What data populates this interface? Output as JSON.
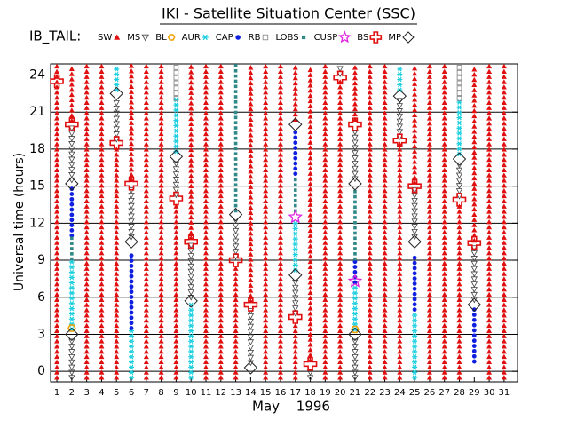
{
  "chart_data": {
    "type": "orbit-regions",
    "title": "IKI - Satellite Situation Center (SSC)",
    "legend_title": "IB_TAIL:",
    "y_label": "Universal time (hours)",
    "x_label": "May 1996",
    "xlim": [
      0.58,
      31.9
    ],
    "ylim": [
      -0.85,
      24.9
    ],
    "xticks": [
      1,
      2,
      3,
      4,
      5,
      6,
      7,
      8,
      9,
      10,
      11,
      12,
      13,
      14,
      15,
      16,
      17,
      18,
      19,
      20,
      21,
      22,
      23,
      24,
      25,
      26,
      27,
      28,
      29,
      30,
      31
    ],
    "yticks": [
      0,
      3,
      6,
      9,
      12,
      15,
      18,
      21,
      24
    ],
    "grid": true,
    "series": [
      {
        "name": "SW",
        "color": "#e01010",
        "marker": "triangle",
        "segments": [
          [
            1,
            -0.5,
            24.8
          ],
          [
            2,
            20.3,
            24.8
          ],
          [
            3,
            -0.5,
            24.8
          ],
          [
            4,
            -0.5,
            24.8
          ],
          [
            5,
            -0.5,
            18.2
          ],
          [
            6,
            15.5,
            24.8
          ],
          [
            7,
            -0.5,
            24.8
          ],
          [
            8,
            -0.5,
            24.8
          ],
          [
            9,
            -0.5,
            13.7
          ],
          [
            10,
            10.8,
            24.8
          ],
          [
            11,
            -0.5,
            24.8
          ],
          [
            12,
            -0.5,
            24.8
          ],
          [
            13,
            -0.5,
            8.6
          ],
          [
            14,
            5.7,
            24.8
          ],
          [
            15,
            -0.5,
            24.8
          ],
          [
            16,
            -0.5,
            24.8
          ],
          [
            17,
            20.4,
            24.8
          ],
          [
            17,
            -0.5,
            4.1
          ],
          [
            18,
            0.9,
            24.8
          ],
          [
            19,
            -0.5,
            24.8
          ],
          [
            20,
            -0.5,
            23.5
          ],
          [
            21,
            20.4,
            24.8
          ],
          [
            22,
            -0.5,
            24.8
          ],
          [
            23,
            -0.5,
            24.8
          ],
          [
            24,
            -0.5,
            18.4
          ],
          [
            25,
            15.3,
            24.8
          ],
          [
            26,
            -0.5,
            24.8
          ],
          [
            27,
            -0.5,
            24.8
          ],
          [
            28,
            -0.5,
            13.6
          ],
          [
            29,
            10.6,
            24.8
          ],
          [
            30,
            -0.5,
            24.8
          ],
          [
            31,
            -0.5,
            24.8
          ]
        ],
        "events": []
      },
      {
        "name": "MS",
        "color": "#404040",
        "marker": "down-triangle",
        "segments": [
          [
            2,
            15.5,
            19.7
          ],
          [
            2,
            -0.5,
            2.7
          ],
          [
            5,
            18.8,
            22.1
          ],
          [
            6,
            10.9,
            14.9
          ],
          [
            9,
            14.3,
            17.0
          ],
          [
            10,
            6.0,
            10.2
          ],
          [
            13,
            9.3,
            12.3
          ],
          [
            14,
            0.7,
            5.1
          ],
          [
            17,
            4.7,
            7.4
          ],
          [
            18,
            -0.5,
            0.3
          ],
          [
            20,
            24.1,
            24.8
          ],
          [
            21,
            15.6,
            19.7
          ],
          [
            21,
            -0.5,
            2.7
          ],
          [
            24,
            19.0,
            22.0
          ],
          [
            25,
            10.9,
            14.7
          ],
          [
            28,
            14.2,
            16.9
          ],
          [
            29,
            5.8,
            10.1
          ]
        ],
        "events": []
      },
      {
        "name": "BL",
        "color": "#f0a000",
        "marker": "hexagon",
        "segments": [],
        "events": [
          [
            2,
            3.5
          ],
          [
            21,
            3.4
          ]
        ]
      },
      {
        "name": "AUR",
        "color": "#20d0e0",
        "marker": "asterisk",
        "segments": [
          [
            2,
            3.4,
            9.0
          ],
          [
            5,
            22.8,
            24.8
          ],
          [
            6,
            -0.5,
            3.3
          ],
          [
            9,
            17.8,
            22.0
          ],
          [
            10,
            -0.5,
            5.4
          ],
          [
            17,
            8.2,
            12.2
          ],
          [
            21,
            3.4,
            7.0
          ],
          [
            24,
            22.8,
            24.8
          ],
          [
            25,
            -0.5,
            4.8
          ],
          [
            28,
            17.6,
            21.9
          ]
        ],
        "events": []
      },
      {
        "name": "CAP",
        "color": "#1020e0",
        "marker": "dot",
        "segments": [
          [
            2,
            11.0,
            15.0
          ],
          [
            6,
            3.5,
            9.5
          ],
          [
            17,
            16.0,
            19.7
          ],
          [
            21,
            7.2,
            9.0
          ],
          [
            25,
            5.0,
            9.6
          ],
          [
            29,
            0.8,
            5.1
          ]
        ],
        "events": []
      },
      {
        "name": "RB",
        "color": "#808080",
        "marker": "square",
        "segments": [
          [
            9,
            22.1,
            24.8
          ],
          [
            28,
            22.1,
            24.8
          ]
        ],
        "events": []
      },
      {
        "name": "LOBS",
        "color": "#308888",
        "marker": "small-square",
        "segments": [
          [
            2,
            9.1,
            10.9
          ],
          [
            13,
            13.0,
            24.8
          ],
          [
            17,
            13.0,
            15.9
          ],
          [
            21,
            9.1,
            14.9
          ]
        ],
        "events": []
      },
      {
        "name": "CUSP",
        "color": "#e020e0",
        "marker": "star",
        "segments": [],
        "events": [
          [
            17,
            12.5
          ],
          [
            21,
            7.3
          ]
        ]
      },
      {
        "name": "BS",
        "color": "#e01010",
        "marker": "cross",
        "segments": [],
        "events": [
          [
            1,
            23.5
          ],
          [
            2,
            20.0
          ],
          [
            5,
            18.5
          ],
          [
            6,
            15.2
          ],
          [
            9,
            14.0
          ],
          [
            10,
            10.5
          ],
          [
            13,
            9.0
          ],
          [
            14,
            5.4
          ],
          [
            17,
            4.4
          ],
          [
            18,
            0.6
          ],
          [
            20,
            23.8
          ],
          [
            21,
            20.0
          ],
          [
            24,
            18.7
          ],
          [
            25,
            15.0
          ],
          [
            28,
            13.9
          ],
          [
            29,
            10.4
          ]
        ]
      },
      {
        "name": "MP",
        "color": "#202020",
        "marker": "diamond",
        "segments": [],
        "events": [
          [
            2,
            15.2
          ],
          [
            2,
            3.0
          ],
          [
            5,
            22.5
          ],
          [
            6,
            10.5
          ],
          [
            9,
            17.4
          ],
          [
            10,
            5.7
          ],
          [
            13,
            12.7
          ],
          [
            14,
            0.3
          ],
          [
            17,
            20.0
          ],
          [
            17,
            7.8
          ],
          [
            21,
            15.2
          ],
          [
            21,
            3.0
          ],
          [
            24,
            22.3
          ],
          [
            25,
            10.5
          ],
          [
            28,
            17.2
          ],
          [
            29,
            5.4
          ]
        ]
      }
    ]
  }
}
